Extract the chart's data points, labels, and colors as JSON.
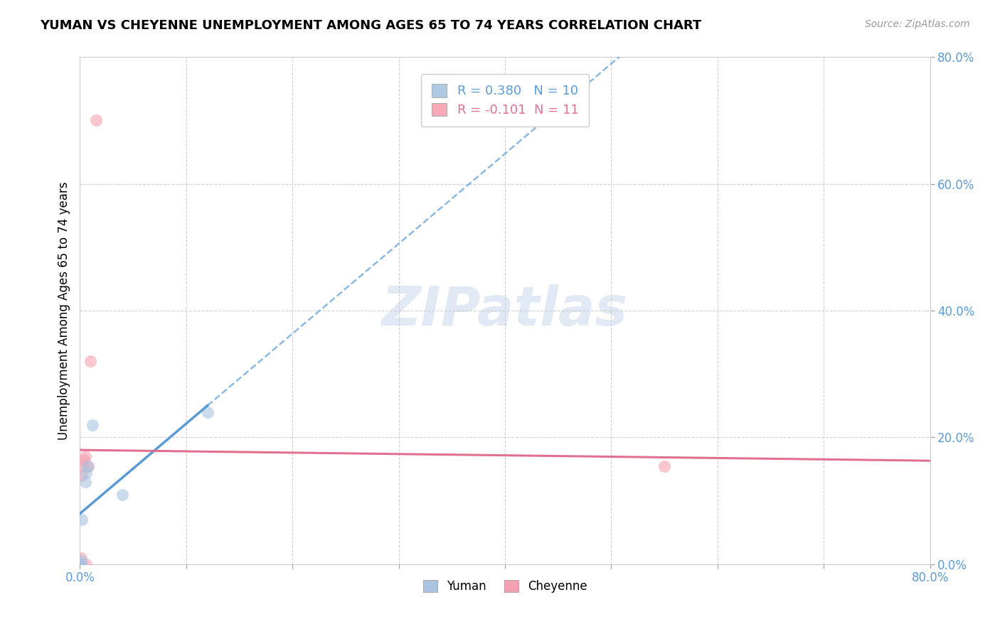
{
  "title": "YUMAN VS CHEYENNE UNEMPLOYMENT AMONG AGES 65 TO 74 YEARS CORRELATION CHART",
  "source": "Source: ZipAtlas.com",
  "ylabel": "Unemployment Among Ages 65 to 74 years",
  "xlim": [
    0.0,
    0.8
  ],
  "ylim": [
    0.0,
    0.8
  ],
  "xticks": [
    0.0,
    0.1,
    0.2,
    0.3,
    0.4,
    0.5,
    0.6,
    0.7,
    0.8
  ],
  "yticks": [
    0.0,
    0.2,
    0.4,
    0.6,
    0.8
  ],
  "xtick_labels_show": [
    "0.0%",
    "80.0%"
  ],
  "xtick_positions_show": [
    0.0,
    0.8
  ],
  "ytick_labels": [
    "0.0%",
    "20.0%",
    "40.0%",
    "60.0%",
    "80.0%"
  ],
  "grid_color": "#cccccc",
  "background_color": "#ffffff",
  "yuman_color": "#a8c4e0",
  "cheyenne_color": "#f4a0b0",
  "yuman_line_color": "#5b9bd5",
  "cheyenne_line_color": "#e07090",
  "yuman_points_x": [
    0.0,
    0.001,
    0.001,
    0.002,
    0.005,
    0.006,
    0.007,
    0.012,
    0.04,
    0.12
  ],
  "yuman_points_y": [
    0.0,
    0.0,
    0.005,
    0.07,
    0.13,
    0.145,
    0.155,
    0.22,
    0.11,
    0.24
  ],
  "cheyenne_points_x": [
    0.0,
    0.001,
    0.002,
    0.003,
    0.004,
    0.005,
    0.008,
    0.01,
    0.015,
    0.55,
    0.006
  ],
  "cheyenne_points_y": [
    0.0,
    0.01,
    0.14,
    0.155,
    0.165,
    0.17,
    0.155,
    0.32,
    0.7,
    0.155,
    0.0
  ],
  "legend_yuman_label": "R = 0.380   N = 10",
  "legend_cheyenne_label": "R = -0.101  N = 11",
  "watermark_text": "ZIPatlas",
  "bottom_legend_yuman": "Yuman",
  "bottom_legend_cheyenne": "Cheyenne"
}
